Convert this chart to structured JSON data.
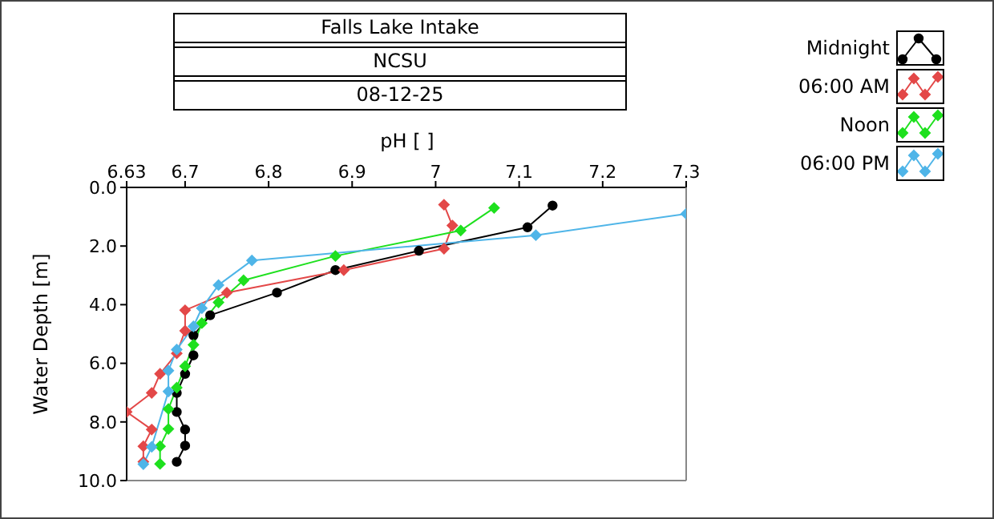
{
  "chart_data": {
    "type": "line",
    "title": "Falls Lake Intake",
    "subtitle": "NCSU",
    "annotations": [
      "08-12-25"
    ],
    "xlabel": "pH [ ]",
    "ylabel": "Water Depth [m]",
    "xlim": [
      6.63,
      7.3
    ],
    "xticks": [
      6.63,
      6.7,
      6.8,
      6.9,
      7,
      7.1,
      7.2,
      7.3
    ],
    "ylim": [
      10,
      0
    ],
    "yticks": [
      {
        "value": 0,
        "label": "0.0"
      },
      {
        "value": 2,
        "label": "2.0"
      },
      {
        "value": 4,
        "label": "4.0"
      },
      {
        "value": 6,
        "label": "6.0"
      },
      {
        "value": 8,
        "label": "8.0"
      },
      {
        "value": 10,
        "label": "10.0"
      }
    ],
    "grid": false,
    "legend": "top right",
    "line_style": "solid",
    "series": [
      {
        "name": "Midnight",
        "color": "#000000",
        "marker": "circle",
        "x": [
          7.14,
          7.11,
          6.98,
          6.88,
          6.81,
          6.73,
          6.71,
          6.71,
          6.7,
          6.69,
          6.69,
          6.7,
          6.7,
          6.69
        ],
        "values": [
          0.62,
          1.36,
          2.16,
          2.82,
          3.59,
          4.36,
          5.05,
          5.73,
          6.36,
          7.01,
          7.66,
          8.26,
          8.81,
          9.36
        ]
      },
      {
        "name": "06:00 AM",
        "color": "#e34848",
        "marker": "diamond",
        "x": [
          7.01,
          7.02,
          7.01,
          6.89,
          6.75,
          6.7,
          6.7,
          6.69,
          6.67,
          6.66,
          6.63,
          6.66,
          6.65,
          6.65
        ],
        "values": [
          0.59,
          1.3,
          2.09,
          2.82,
          3.59,
          4.19,
          4.89,
          5.66,
          6.36,
          7.01,
          7.66,
          8.26,
          8.83,
          9.36
        ]
      },
      {
        "name": "Noon",
        "color": "#1ee01e",
        "marker": "diamond",
        "x": [
          7.07,
          7.03,
          6.88,
          6.77,
          6.74,
          6.72,
          6.71,
          6.7,
          6.69,
          6.68,
          6.68,
          6.67,
          6.67
        ],
        "values": [
          0.7,
          1.47,
          2.34,
          3.17,
          3.92,
          4.63,
          5.37,
          6.1,
          6.83,
          7.56,
          8.24,
          8.83,
          9.43
        ]
      },
      {
        "name": "06:00 PM",
        "color": "#4fb5e8",
        "marker": "diamond",
        "x": [
          7.3,
          7.12,
          6.78,
          6.74,
          6.72,
          6.71,
          6.69,
          6.68,
          6.68,
          6.66,
          6.65
        ],
        "values": [
          0.9,
          1.63,
          2.49,
          3.33,
          4.12,
          4.74,
          5.53,
          6.25,
          6.96,
          8.85,
          9.44
        ]
      }
    ]
  }
}
